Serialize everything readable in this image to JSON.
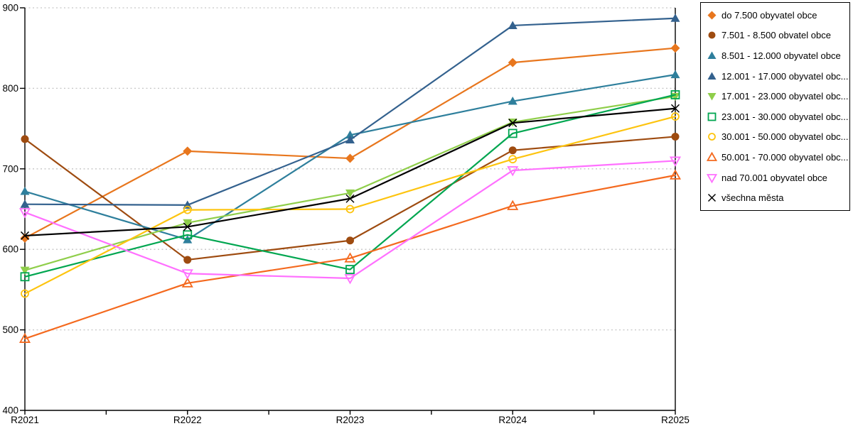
{
  "chart_data": {
    "type": "line",
    "title": "",
    "xlabel": "",
    "ylabel": "",
    "x_categories": [
      "R2021",
      "R2022",
      "R2023",
      "R2024",
      "R2025"
    ],
    "ylim": [
      400,
      900
    ],
    "y_ticks": [
      400,
      500,
      600,
      700,
      800,
      900
    ],
    "grid": "horizontal-dotted",
    "grid_color": "#c6c6c6",
    "axis_color": "#000000",
    "legend_position": "right-outside",
    "series": [
      {
        "name": "do 7.500 obyvatel obce",
        "marker": "diamond-filled",
        "color": "#e8761d",
        "values": [
          614,
          722,
          713,
          832,
          850
        ]
      },
      {
        "name": "7.501 - 8.500 obvatel obce",
        "marker": "circle-filled",
        "color": "#9e4b10",
        "values": [
          737,
          587,
          611,
          723,
          740
        ]
      },
      {
        "name": "8.501 - 12.000 obyvatel obce",
        "marker": "triangle-up-filled",
        "color": "#2e7f9c",
        "values": [
          672,
          612,
          742,
          784,
          817
        ]
      },
      {
        "name": "12.001 - 17.000 obyvatel obc...",
        "marker": "triangle-up-filled",
        "color": "#33618e",
        "values": [
          656,
          655,
          736,
          878,
          887
        ]
      },
      {
        "name": "17.001 - 23.000 obyvatel obc...",
        "marker": "triangle-down-filled",
        "color": "#8fce4a",
        "values": [
          574,
          633,
          670,
          758,
          790
        ]
      },
      {
        "name": "23.001 - 30.000 obyvatel obc...",
        "marker": "square-open",
        "color": "#00a650",
        "values": [
          566,
          618,
          575,
          744,
          792
        ]
      },
      {
        "name": "30.001 - 50.000 obyvatel obc...",
        "marker": "circle-open",
        "color": "#fdc40f",
        "values": [
          545,
          649,
          650,
          712,
          765
        ]
      },
      {
        "name": "50.001 - 70.000 obyvatel obc...",
        "marker": "triangle-up-open",
        "color": "#f4691e",
        "values": [
          489,
          558,
          589,
          654,
          692
        ]
      },
      {
        "name": "nad 70.001 obyvatel obce",
        "marker": "triangle-down-open",
        "color": "#ff70ff",
        "values": [
          646,
          570,
          564,
          698,
          710
        ]
      },
      {
        "name": "všechna města",
        "marker": "x-cross",
        "color": "#000000",
        "values": [
          617,
          628,
          663,
          757,
          775
        ]
      }
    ]
  }
}
